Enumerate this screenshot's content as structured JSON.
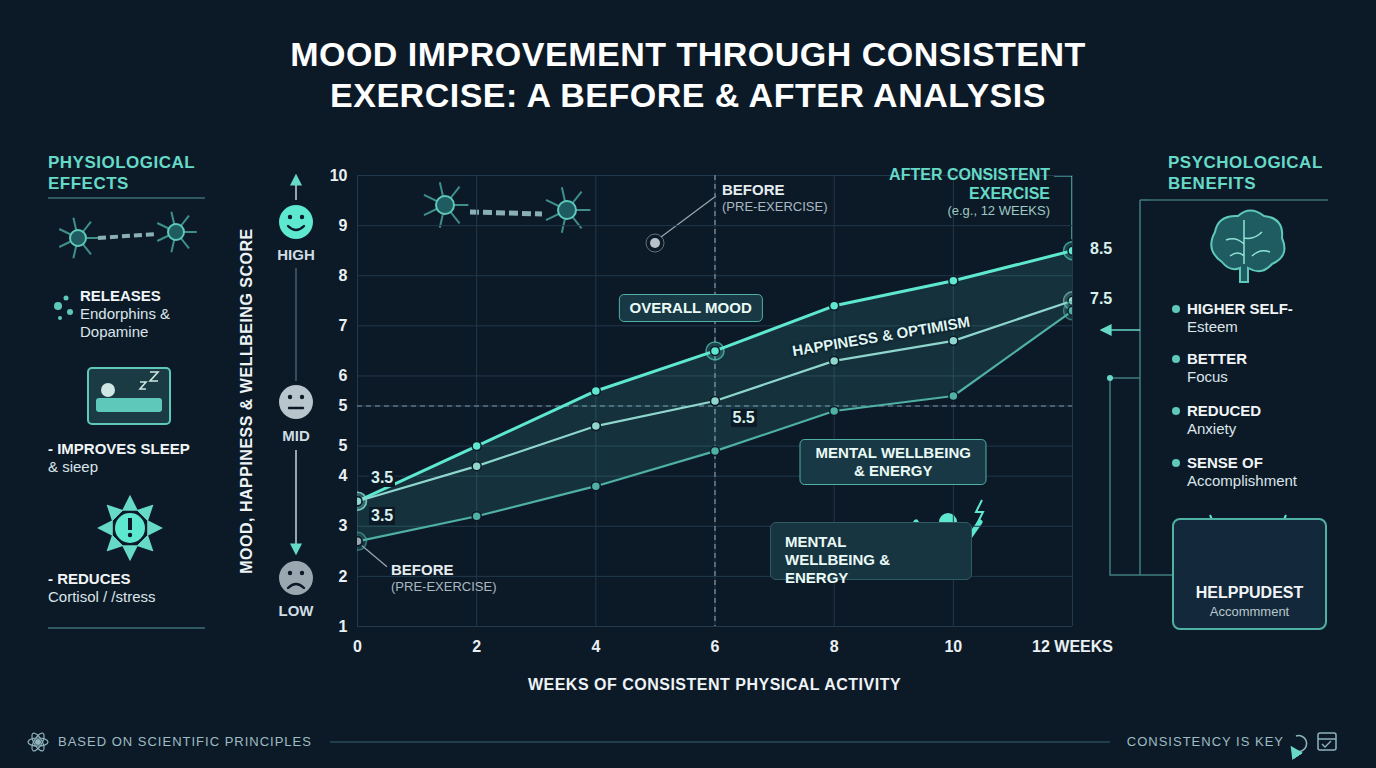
{
  "chart_data": {
    "type": "line",
    "title": "MOOD IMPROVEMENT THROUGH CONSISTENT EXERCISE: A BEFORE & AFTER ANALYSIS",
    "x_label": "WEEKS OF CONSISTENT PHYSICAL ACTIVITY",
    "y_label": "MOOD, HAPPINESS & WELLBEING SCORE",
    "x": [
      0,
      2,
      4,
      6,
      8,
      10,
      12
    ],
    "series": [
      {
        "name": "OVERALL MOOD",
        "color": "#5ee8d0",
        "values": [
          3.5,
          4.6,
          5.7,
          6.5,
          7.4,
          7.9,
          8.5
        ],
        "value_labels": [
          "3.5",
          null,
          null,
          null,
          null,
          null,
          "8.5"
        ]
      },
      {
        "name": "HAPPINESS & OPTIMISM",
        "color": "#8fd6cd",
        "values": [
          3.5,
          4.2,
          5.0,
          5.5,
          6.3,
          6.7,
          7.5
        ],
        "value_labels": [
          "3.5",
          null,
          null,
          "5.5",
          null,
          null,
          "7.5"
        ]
      },
      {
        "name": "MENTAL WELLBEING & ENERGY",
        "color": "#4fb0a4",
        "values": [
          2.7,
          3.2,
          3.8,
          4.5,
          5.3,
          5.6,
          7.3
        ]
      }
    ],
    "xlim": [
      0,
      12
    ],
    "xticks": [
      0,
      2,
      4,
      6,
      8,
      10,
      {
        "value": 12,
        "label": "12 WEEKS"
      }
    ],
    "ylim": [
      1,
      10
    ],
    "yticks": [
      1,
      2,
      3,
      4,
      {
        "value": 4.6,
        "label": "5"
      },
      {
        "value": 5.4,
        "label": "5"
      },
      6,
      7,
      8,
      9,
      10
    ],
    "grid": true,
    "marker": "circle",
    "reference_lines": {
      "x": 6,
      "y": 5.4
    },
    "mood_scale": {
      "high": "HIGH",
      "mid": "MID",
      "low": "LOW"
    },
    "annotations": {
      "before": {
        "text": "BEFORE",
        "subtext": "(PRE-EXERCISE)"
      },
      "before_inset": {
        "text": "BEFORE",
        "subtext": "(PRE-EXERCISE)"
      },
      "after": {
        "text": "AFTER CONSISTENT EXERCISE",
        "subtext": "(e.g., 12 WEEKS)"
      }
    },
    "callout": "MENTAL WELLBEING & ENERGY"
  },
  "left_panel": {
    "title": "PHYSIOLOGICAL EFFECTS",
    "items": [
      {
        "head": "RELEASES",
        "body": "Endorphins & Dopamine"
      },
      {
        "head": "- IMPROVES SLEEP",
        "body": "& sieep"
      },
      {
        "head": "- REDUCES",
        "body": "Cortisol / /stress"
      }
    ]
  },
  "right_panel": {
    "title": "PSYCHOLOGICAL BENEFITS",
    "items": [
      {
        "head": "HIGHER SELF-",
        "body": "Esteem"
      },
      {
        "head": "BETTER",
        "body": "Focus"
      },
      {
        "head": "REDUCED",
        "body": "Anxiety"
      },
      {
        "head": "SENSE OF",
        "body": "Accomplishment"
      }
    ],
    "badge": {
      "head": "HELPPUDEST",
      "body": "Accommment"
    }
  },
  "footer": {
    "left": "BASED ON SCIENTIFIC PRINCIPLES",
    "right": "CONSISTENCY IS KEY"
  }
}
